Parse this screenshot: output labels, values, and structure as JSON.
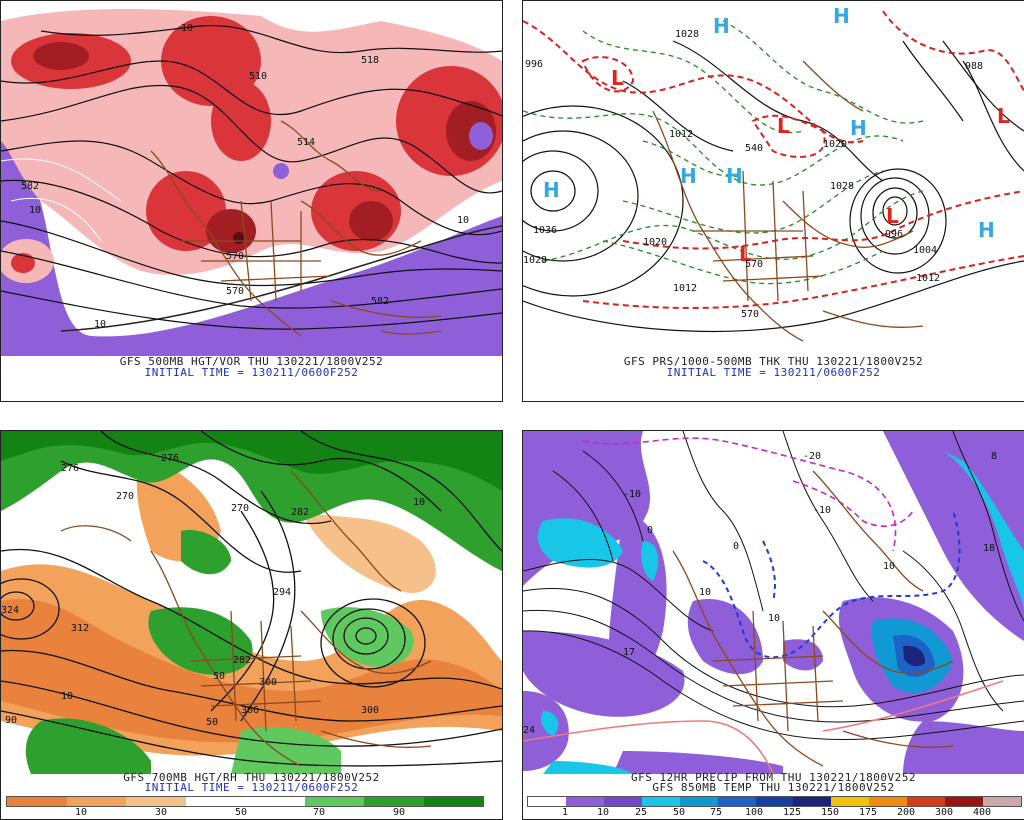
{
  "panels": {
    "p1": {
      "title": "GFS 500MB HGT/VOR THU 130221/1800V252",
      "subtitle": "INITIAL TIME = 130211/0600F252",
      "contour_labels": [
        "582",
        "510",
        "570",
        "514",
        "10",
        "582",
        "570",
        "518",
        "10",
        "10",
        "10"
      ],
      "colors": {
        "vort": "#d9353a",
        "negvort": "#8a4fe0",
        "light": "#f6b7b9"
      }
    },
    "p2": {
      "title": "GFS PRS/1000-500MB THK THU 130221/1800V252",
      "subtitle": "INITIAL TIME = 130211/0600F252",
      "highs": [
        "H",
        "H",
        "H",
        "H",
        "H",
        "H",
        "H"
      ],
      "lows": [
        "L",
        "L",
        "L",
        "L",
        "L"
      ],
      "contour_labels": [
        "996",
        "1028",
        "988",
        "1012",
        "1020",
        "1036",
        "1028",
        "1020",
        "1012",
        "1028",
        "1004",
        "1012",
        "996",
        "570",
        "570",
        "540"
      ],
      "colors": {
        "high": "#36a7e0",
        "low": "#e0231c",
        "thk_cold": "#228a22",
        "thk_warm": "#d82020"
      }
    },
    "p3": {
      "title": "GFS 700MB HGT/RH THU 130221/1800V252",
      "subtitle": "INITIAL TIME = 130211/0600F252",
      "contour_labels": [
        "276",
        "270",
        "270",
        "282",
        "276",
        "294",
        "306",
        "300",
        "282",
        "324",
        "312",
        "300",
        "10",
        "50",
        "50",
        "90",
        "10"
      ],
      "colorbar_ticks": [
        "10",
        "30",
        "50",
        "70",
        "90"
      ],
      "colorbar_colors": [
        "#e9823c",
        "#f2a25a",
        "#f6c08a",
        "#ffffff",
        "#ffffff",
        "#5fc85f",
        "#2ea02e",
        "#138313"
      ]
    },
    "p4": {
      "title": "GFS 12HR PRECIP FROM THU 130221/1800V252",
      "subtitle": "GFS 850MB TEMP THU 130221/1800V252",
      "contour_labels": [
        "17",
        "8",
        "18",
        "10",
        "10",
        "0",
        "-10",
        "-20",
        "-10",
        "0",
        "10",
        "24"
      ],
      "colorbar_ticks": [
        "1",
        "10",
        "25",
        "50",
        "75",
        "100",
        "125",
        "150",
        "175",
        "200",
        "300",
        "400"
      ],
      "colorbar_colors": [
        "#ffffff",
        "#8f5fd9",
        "#7348c8",
        "#18c7e8",
        "#1099d2",
        "#1e62c8",
        "#1540a0",
        "#1b2478",
        "#f2c20a",
        "#f08a10",
        "#d43c1a",
        "#9b1414",
        "#c8a8a8"
      ]
    }
  }
}
